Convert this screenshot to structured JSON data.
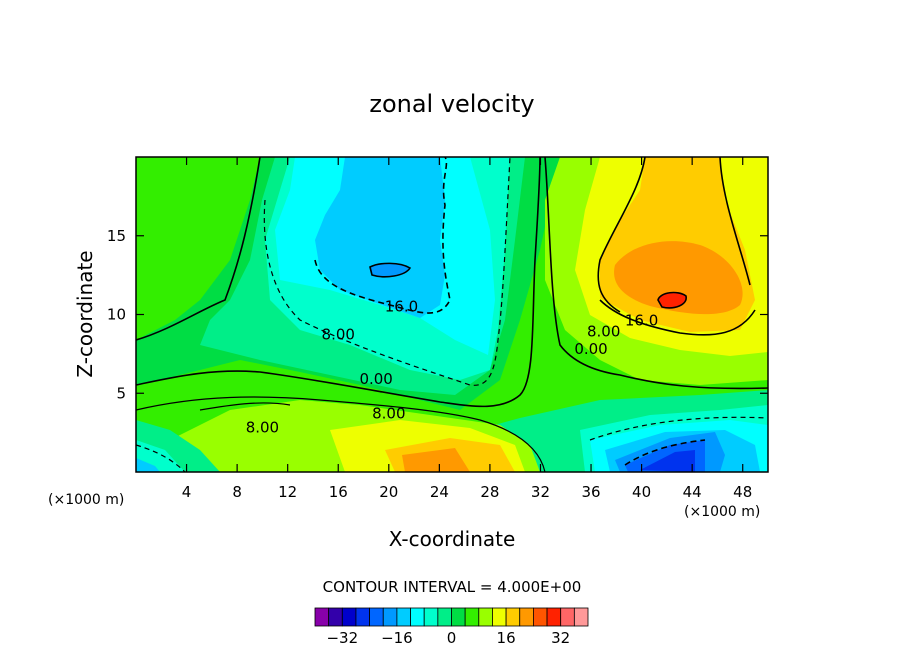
{
  "chart_data": {
    "type": "heatmap",
    "subtype": "filled-contour",
    "title": "zonal velocity",
    "xlabel": "X-coordinate",
    "ylabel": "Z-coordinate",
    "x_unit": "(×1000 m)",
    "y_unit": "(×1000 m)",
    "xlim": [
      0,
      50
    ],
    "ylim": [
      0,
      20
    ],
    "xticks": [
      4,
      8,
      12,
      16,
      20,
      24,
      28,
      32,
      36,
      40,
      44,
      48
    ],
    "yticks": [
      5,
      10,
      15
    ],
    "contour_interval_text": "CONTOUR INTERVAL = 4.000E+00",
    "contour_interval": 4,
    "contour_labels": [
      {
        "text": "16.0",
        "x": 21,
        "z": 10.2
      },
      {
        "text": "8.00",
        "x": 16,
        "z": 8.4
      },
      {
        "text": "0.00",
        "x": 19,
        "z": 5.6
      },
      {
        "text": "8.00",
        "x": 20,
        "z": 3.4
      },
      {
        "text": "8.00",
        "x": 10,
        "z": 2.5
      },
      {
        "text": "16.0",
        "x": 40,
        "z": 9.3
      },
      {
        "text": "8.00",
        "x": 37,
        "z": 8.6
      },
      {
        "text": "0.00",
        "x": 36,
        "z": 7.5
      }
    ],
    "field_features": [
      {
        "name": "negative jet core (upper)",
        "x": 20,
        "z": 12.5,
        "value": -20
      },
      {
        "name": "positive jet core (upper right)",
        "x": 42,
        "z": 11,
        "value": 32
      },
      {
        "name": "positive core (lower)",
        "x": 23,
        "z": 1,
        "value": 20
      },
      {
        "name": "negative core (lower right)",
        "x": 42,
        "z": 1,
        "value": -24
      }
    ],
    "colorbar": {
      "levels": [
        -36,
        -32,
        -28,
        -24,
        -20,
        -16,
        -12,
        -8,
        -4,
        0,
        4,
        8,
        12,
        16,
        20,
        24,
        28,
        32,
        36
      ],
      "tick_labels": [
        "−32",
        "−16",
        "0",
        "16",
        "32"
      ],
      "tick_values": [
        -32,
        -16,
        0,
        16,
        32
      ],
      "colors": [
        "#8800aa",
        "#3300aa",
        "#0000cc",
        "#0033ee",
        "#0066ff",
        "#0099ff",
        "#00ccff",
        "#00ffff",
        "#00ffcc",
        "#00ee88",
        "#00dd44",
        "#33ee00",
        "#99ff00",
        "#eeff00",
        "#ffcc00",
        "#ff9900",
        "#ff5500",
        "#ff2200",
        "#ff6666",
        "#ff9999"
      ]
    }
  }
}
